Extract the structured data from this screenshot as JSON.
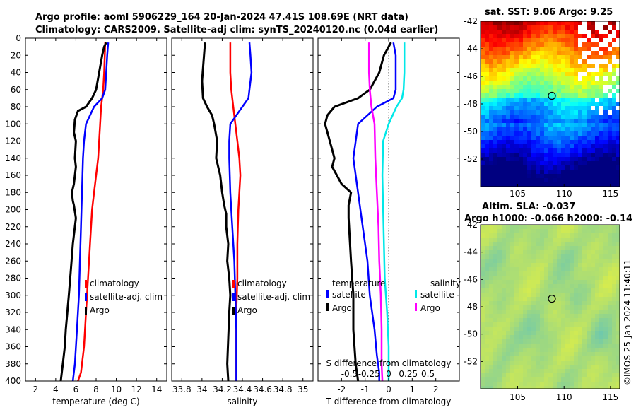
{
  "header": {
    "title_line1": "Argo profile: aoml 5906229_164 20-Jan-2024 47.41S 108.69E (NRT data)",
    "title_line2": "Climatology: CARS2009. Satellite-adj clim: synTS_20240120.nc (0.04d earlier)"
  },
  "colors": {
    "climatology": "#ff0000",
    "satellite": "#0000ff",
    "argo": "#000000",
    "salinity_satellite": "#00e8e8",
    "salinity_argo": "#ff00ff"
  },
  "chart_data": [
    {
      "type": "line",
      "name": "temperature",
      "xlabel": "temperature (deg C)",
      "xlim": [
        1,
        15
      ],
      "ylim": [
        0,
        400
      ],
      "xticks": [
        2,
        4,
        6,
        8,
        10,
        12,
        14
      ],
      "yticks": [
        0,
        20,
        40,
        60,
        80,
        100,
        120,
        140,
        160,
        180,
        200,
        220,
        240,
        260,
        280,
        300,
        320,
        340,
        360,
        380,
        400
      ],
      "series": [
        {
          "name": "climatology",
          "color": "#ff0000",
          "width": 2.5,
          "x": [
            8.9,
            8.8,
            8.7,
            8.5,
            8.4,
            8.3,
            8.2,
            8.0,
            7.8,
            7.6,
            7.4,
            7.2,
            7.0,
            6.8,
            6.5,
            6.2
          ],
          "depth": [
            5,
            40,
            60,
            80,
            100,
            120,
            140,
            160,
            180,
            200,
            240,
            280,
            320,
            360,
            390,
            400
          ]
        },
        {
          "name": "satellite-adj. clim",
          "color": "#0000ff",
          "width": 2.5,
          "x": [
            9.2,
            9.1,
            9.0,
            8.9,
            8.6,
            7.8,
            7.0,
            6.8,
            6.7,
            6.6,
            6.5,
            6.4,
            6.3,
            6.1,
            5.9,
            5.7
          ],
          "depth": [
            5,
            20,
            40,
            60,
            70,
            80,
            100,
            120,
            140,
            180,
            220,
            260,
            300,
            340,
            380,
            400
          ]
        },
        {
          "name": "Argo",
          "color": "#000000",
          "width": 3,
          "x": [
            9.0,
            8.8,
            8.6,
            8.3,
            8.0,
            7.6,
            7.0,
            6.2,
            5.9,
            5.8,
            6.0,
            5.9,
            6.0,
            5.8,
            5.6,
            5.7,
            5.8,
            6.0,
            5.7,
            5.5,
            5.3,
            5.0,
            4.9,
            4.7,
            4.5
          ],
          "depth": [
            5,
            10,
            20,
            40,
            60,
            70,
            80,
            85,
            95,
            110,
            120,
            140,
            150,
            170,
            180,
            190,
            195,
            210,
            240,
            270,
            300,
            340,
            360,
            380,
            400
          ]
        }
      ],
      "legend": [
        "climatology",
        "satellite-adj. clim",
        "Argo"
      ],
      "legend_location": "center-right"
    },
    {
      "type": "line",
      "name": "salinity",
      "xlabel": "salinity",
      "xlim": [
        33.7,
        35.1
      ],
      "ylim": [
        0,
        400
      ],
      "xticks": [
        33.8,
        34.0,
        34.2,
        34.4,
        34.6,
        34.8,
        35.0
      ],
      "xticklabels": [
        "33.8",
        "34",
        "34.2",
        "34.4",
        "34.6",
        "34.8",
        "35"
      ],
      "series": [
        {
          "name": "climatology",
          "color": "#ff0000",
          "width": 2.5,
          "x": [
            34.28,
            34.28,
            34.29,
            34.31,
            34.33,
            34.35,
            34.37,
            34.38,
            34.37,
            34.36,
            34.35,
            34.35,
            34.34,
            34.34,
            34.34,
            34.34
          ],
          "depth": [
            5,
            40,
            60,
            80,
            100,
            120,
            140,
            160,
            180,
            200,
            240,
            280,
            320,
            360,
            390,
            400
          ]
        },
        {
          "name": "satellite-adj. clim",
          "color": "#0000ff",
          "width": 2.5,
          "x": [
            34.47,
            34.48,
            34.49,
            34.47,
            34.46,
            34.4,
            34.28,
            34.27,
            34.27,
            34.28,
            34.3,
            34.32,
            34.33,
            34.34,
            34.34,
            34.34
          ],
          "depth": [
            5,
            20,
            40,
            60,
            70,
            80,
            100,
            120,
            140,
            180,
            220,
            260,
            300,
            340,
            380,
            400
          ]
        },
        {
          "name": "Argo",
          "color": "#000000",
          "width": 3,
          "x": [
            34.03,
            34.02,
            34.0,
            34.01,
            34.05,
            34.1,
            34.12,
            34.15,
            34.14,
            34.18,
            34.2,
            34.22,
            34.24,
            34.24,
            34.26,
            34.25,
            34.27,
            34.28,
            34.27,
            34.26,
            34.25,
            34.26
          ],
          "depth": [
            5,
            20,
            50,
            70,
            80,
            90,
            100,
            120,
            140,
            160,
            180,
            195,
            205,
            220,
            240,
            260,
            280,
            300,
            320,
            350,
            380,
            400
          ]
        }
      ],
      "legend": [
        "climatology",
        "satellite-adj. clim",
        "Argo"
      ],
      "legend_location": "center-right"
    },
    {
      "type": "line",
      "name": "differences",
      "xlabel": "T difference from climatology",
      "xlabel_top": "S difference from climatology",
      "xlim": [
        -3,
        3
      ],
      "ylim": [
        0,
        400
      ],
      "xticks": [
        -2,
        -1,
        0,
        1,
        2
      ],
      "top_axis_xlim": [
        -0.9,
        0.9
      ],
      "top_axis_ticks": [
        -0.5,
        -0.25,
        0,
        0.25,
        0.5
      ],
      "zero_line": "dotted",
      "series": [
        {
          "name": "temperature satellite",
          "color": "#0000ff",
          "width": 2.5,
          "axis": "T",
          "x": [
            0.2,
            0.3,
            0.3,
            0.3,
            0.2,
            -0.5,
            -1.3,
            -1.5,
            -1.3,
            -1.1,
            -0.9,
            -0.8,
            -0.6,
            -0.5,
            -0.4,
            -0.4
          ],
          "depth": [
            5,
            20,
            40,
            60,
            70,
            80,
            100,
            140,
            180,
            220,
            260,
            300,
            340,
            370,
            390,
            400
          ]
        },
        {
          "name": "temperature Argo",
          "color": "#000000",
          "width": 3,
          "axis": "T",
          "x": [
            0.1,
            0.0,
            -0.2,
            -0.4,
            -0.8,
            -1.3,
            -2.3,
            -2.6,
            -2.7,
            -2.5,
            -2.3,
            -2.4,
            -2.2,
            -2.0,
            -1.6,
            -1.7,
            -1.7,
            -1.6,
            -1.5,
            -1.5,
            -1.4,
            -1.3
          ],
          "depth": [
            5,
            10,
            20,
            40,
            60,
            70,
            80,
            90,
            100,
            120,
            140,
            150,
            160,
            170,
            180,
            195,
            210,
            260,
            300,
            340,
            380,
            400
          ]
        },
        {
          "name": "salinity satellite",
          "color": "#00e8e8",
          "width": 2.5,
          "axis": "S",
          "x": [
            0.2,
            0.2,
            0.2,
            0.19,
            0.17,
            0.1,
            0.0,
            -0.07,
            -0.08,
            -0.07,
            -0.06,
            -0.05,
            -0.02,
            0.0,
            0.0
          ],
          "depth": [
            5,
            20,
            40,
            60,
            70,
            80,
            100,
            120,
            160,
            200,
            240,
            280,
            320,
            360,
            400
          ]
        },
        {
          "name": "salinity Argo",
          "color": "#ff00ff",
          "width": 2.5,
          "axis": "S",
          "x": [
            -0.25,
            -0.25,
            -0.24,
            -0.22,
            -0.18,
            -0.17,
            -0.15,
            -0.13,
            -0.12,
            -0.1,
            -0.09,
            -0.09,
            -0.08
          ],
          "depth": [
            5,
            40,
            60,
            80,
            100,
            140,
            180,
            220,
            260,
            300,
            340,
            380,
            400
          ]
        }
      ],
      "legend_temperature_title": "temperature",
      "legend_salinity_title": "salinity",
      "legend_temperature": [
        "satellite",
        "Argo"
      ],
      "legend_salinity": [
        "satellite",
        "Argo"
      ]
    },
    {
      "type": "heatmap",
      "name": "sst-map",
      "title": "sat. SST: 9.06 Argo: 9.25",
      "xlim": [
        101,
        116
      ],
      "ylim": [
        -54,
        -42
      ],
      "xticks": [
        105,
        110,
        115
      ],
      "yticks": [
        -42,
        -44,
        -46,
        -48,
        -50,
        -52
      ],
      "marker": {
        "lon": 108.69,
        "lat": -47.41
      },
      "field": "sea surface temperature"
    },
    {
      "type": "heatmap",
      "name": "sla-map",
      "title_line1": "Altim. SLA: -0.037",
      "title_line2": "Argo h1000: -0.066 h2000: -0.14",
      "xlim": [
        101,
        116
      ],
      "ylim": [
        -54,
        -42
      ],
      "xticks": [
        105,
        110,
        115
      ],
      "yticks": [
        -42,
        -44,
        -46,
        -48,
        -50,
        -52
      ],
      "marker": {
        "lon": 108.69,
        "lat": -47.41
      },
      "field": "sea level anomaly"
    }
  ],
  "footer": {
    "credit": "©IMOS 25-Jan-2024 11:40:11"
  }
}
